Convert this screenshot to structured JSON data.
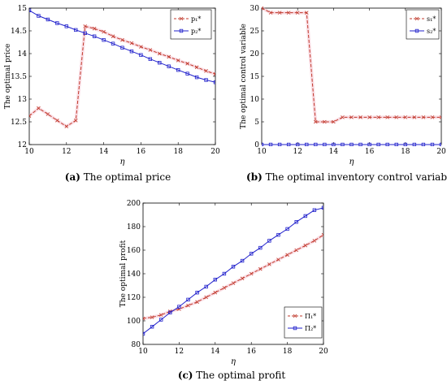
{
  "chart_data": [
    {
      "type": "line",
      "caption_letter": "(a)",
      "caption_text": " The optimal price",
      "xlabel": "η",
      "ylabel": "The optimal price",
      "xlim": [
        10,
        20
      ],
      "ylim": [
        12,
        15
      ],
      "xticks": [
        "10",
        "12",
        "14",
        "16",
        "18",
        "20"
      ],
      "yticks": [
        "12",
        "12.5",
        "13",
        "13.5",
        "14",
        "14.5",
        "15"
      ],
      "legend": "top-right",
      "series": [
        {
          "name": "p₁*",
          "color": "#c0392b",
          "marker": "x",
          "dash": true,
          "x": [
            10,
            10.5,
            11,
            11.5,
            12,
            12.5,
            13,
            13.5,
            14,
            14.5,
            15,
            15.5,
            16,
            16.5,
            17,
            17.5,
            18,
            18.5,
            19,
            19.5,
            20
          ],
          "y": [
            12.63,
            12.8,
            12.67,
            12.53,
            12.4,
            12.53,
            14.6,
            14.55,
            14.48,
            14.38,
            14.3,
            14.23,
            14.15,
            14.08,
            14.0,
            13.93,
            13.85,
            13.78,
            13.7,
            13.62,
            13.55
          ]
        },
        {
          "name": "p₂*",
          "color": "#2222cc",
          "marker": "s",
          "dash": false,
          "x": [
            10,
            10.5,
            11,
            11.5,
            12,
            12.5,
            13,
            13.5,
            14,
            14.5,
            15,
            15.5,
            16,
            16.5,
            17,
            17.5,
            18,
            18.5,
            19,
            19.5,
            20
          ],
          "y": [
            14.95,
            14.83,
            14.75,
            14.67,
            14.6,
            14.52,
            14.45,
            14.38,
            14.3,
            14.22,
            14.13,
            14.05,
            13.97,
            13.88,
            13.8,
            13.72,
            13.64,
            13.56,
            13.48,
            13.42,
            13.37
          ]
        }
      ]
    },
    {
      "type": "line",
      "caption_letter": "(b)",
      "caption_text": " The optimal inventory control variable",
      "xlabel": "η",
      "ylabel": "The optimal control variable",
      "xlim": [
        10,
        20
      ],
      "ylim": [
        0,
        30
      ],
      "xticks": [
        "10",
        "12",
        "14",
        "16",
        "18",
        "20"
      ],
      "yticks": [
        "0",
        "5",
        "10",
        "15",
        "20",
        "25",
        "30"
      ],
      "legend": "top-right",
      "series": [
        {
          "name": "s₁*",
          "color": "#c0392b",
          "marker": "x",
          "dash": true,
          "x": [
            10,
            10.5,
            11,
            11.5,
            12,
            12.5,
            13,
            13.5,
            14,
            14.5,
            15,
            15.5,
            16,
            16.5,
            17,
            17.5,
            18,
            18.5,
            19,
            19.5,
            20
          ],
          "y": [
            30,
            29,
            29,
            29,
            29,
            29,
            5,
            5,
            5,
            6,
            6,
            6,
            6,
            6,
            6,
            6,
            6,
            6,
            6,
            6,
            6
          ]
        },
        {
          "name": "s₂*",
          "color": "#2222cc",
          "marker": "s",
          "dash": false,
          "x": [
            10,
            10.5,
            11,
            11.5,
            12,
            12.5,
            13,
            13.5,
            14,
            14.5,
            15,
            15.5,
            16,
            16.5,
            17,
            17.5,
            18,
            18.5,
            19,
            19.5,
            20
          ],
          "y": [
            0,
            0,
            0,
            0,
            0,
            0,
            0,
            0,
            0,
            0,
            0,
            0,
            0,
            0,
            0,
            0,
            0,
            0,
            0,
            0,
            0
          ]
        }
      ]
    },
    {
      "type": "line",
      "caption_letter": "(c)",
      "caption_text": " The optimal profit",
      "xlabel": "η",
      "ylabel": "The optimal profit",
      "xlim": [
        10,
        20
      ],
      "ylim": [
        80,
        200
      ],
      "xticks": [
        "10",
        "12",
        "14",
        "16",
        "18",
        "20"
      ],
      "yticks": [
        "80",
        "100",
        "120",
        "140",
        "160",
        "180",
        "200"
      ],
      "legend": "bottom-right",
      "series": [
        {
          "name": "Π₁*",
          "color": "#c0392b",
          "marker": "x",
          "dash": true,
          "x": [
            10,
            10.5,
            11,
            11.5,
            12,
            12.5,
            13,
            13.5,
            14,
            14.5,
            15,
            15.5,
            16,
            16.5,
            17,
            17.5,
            18,
            18.5,
            19,
            19.5,
            20
          ],
          "y": [
            102,
            103,
            105,
            108,
            110,
            113,
            116,
            120,
            124,
            128,
            132,
            136,
            140,
            144,
            148,
            152,
            156,
            160,
            164,
            168,
            173
          ]
        },
        {
          "name": "Π₂*",
          "color": "#2222cc",
          "marker": "s",
          "dash": false,
          "x": [
            10,
            10.5,
            11,
            11.5,
            12,
            12.5,
            13,
            13.5,
            14,
            14.5,
            15,
            15.5,
            16,
            16.5,
            17,
            17.5,
            18,
            18.5,
            19,
            19.5,
            20
          ],
          "y": [
            89,
            95,
            101,
            107,
            112,
            118,
            124,
            129,
            135,
            140,
            146,
            151,
            157,
            162,
            168,
            173,
            178,
            184,
            189,
            194,
            196
          ]
        }
      ]
    }
  ]
}
